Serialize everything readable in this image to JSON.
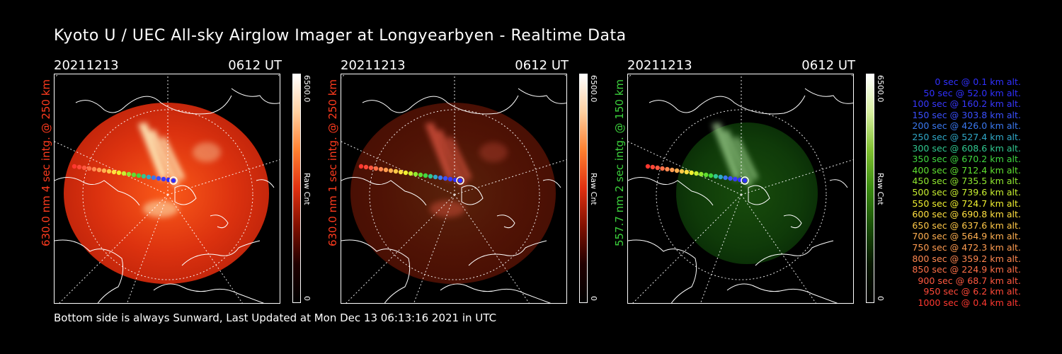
{
  "title": "Kyoto U / UEC All-sky Airglow Imager at Longyearbyen - Realtime Data",
  "footer": "Bottom side is always Sunward, Last Updated at Mon Dec 13 06:13:16 2021 in UTC",
  "panels": [
    {
      "date": "20211213",
      "time": "0612 UT",
      "ylabel": "630.0 nm 4 sec intg. @ 250 km",
      "label_color": "#ff3b1e",
      "colorbar_max": "6500.0",
      "colorbar_unit": "Raw Cnt",
      "colorbar_min": "0",
      "theme": "red",
      "brightness": 1.0
    },
    {
      "date": "20211213",
      "time": "0612 UT",
      "ylabel": "630.0 nm 1 sec intg. @ 250 km",
      "label_color": "#ff3b1e",
      "colorbar_max": "6500.0",
      "colorbar_unit": "Raw Cnt",
      "colorbar_min": "0",
      "theme": "red",
      "brightness": 0.3
    },
    {
      "date": "20211213",
      "time": "0612 UT",
      "ylabel": "557.7 nm 2 sec intg. @ 150 km",
      "label_color": "#3cd23c",
      "colorbar_max": "6500.0",
      "colorbar_unit": "Raw Cnt",
      "colorbar_min": "0",
      "theme": "green",
      "brightness": 0.6
    }
  ],
  "legend": [
    {
      "text": "0 sec @    0.1 km alt.",
      "color": "#3030ff"
    },
    {
      "text": "50 sec @   52.0 km alt.",
      "color": "#3030ff"
    },
    {
      "text": "100 sec @ 160.2 km alt.",
      "color": "#3838ff"
    },
    {
      "text": "150 sec @ 303.8 km alt.",
      "color": "#3a50ff"
    },
    {
      "text": "200 sec @ 426.0 km alt.",
      "color": "#3a78f0"
    },
    {
      "text": "250 sec @ 527.4 km alt.",
      "color": "#30a8c8"
    },
    {
      "text": "300 sec @ 608.6 km alt.",
      "color": "#30c890"
    },
    {
      "text": "350 sec @ 670.2 km alt.",
      "color": "#40d840"
    },
    {
      "text": "400 sec @ 712.4 km alt.",
      "color": "#60e030"
    },
    {
      "text": "450 sec @ 735.5 km alt.",
      "color": "#90e830"
    },
    {
      "text": "500 sec @ 739.6 km alt.",
      "color": "#c8f030"
    },
    {
      "text": "550 sec @ 724.7 km alt.",
      "color": "#f0f030"
    },
    {
      "text": "600 sec @ 690.8 km alt.",
      "color": "#ffe040"
    },
    {
      "text": "650 sec @ 637.6 km alt.",
      "color": "#ffc848"
    },
    {
      "text": "700 sec @ 564.9 km alt.",
      "color": "#ffb050"
    },
    {
      "text": "750 sec @ 472.3 km alt.",
      "color": "#ff9c50"
    },
    {
      "text": "800 sec @ 359.2 km alt.",
      "color": "#ff8850"
    },
    {
      "text": "850 sec @ 224.9 km alt.",
      "color": "#ff7048"
    },
    {
      "text": "900 sec @   68.7 km alt.",
      "color": "#ff5840"
    },
    {
      "text": "950 sec @    6.2 km alt.",
      "color": "#ff4838"
    },
    {
      "text": "1000 sec @    0.4 km alt.",
      "color": "#ff3830"
    }
  ]
}
